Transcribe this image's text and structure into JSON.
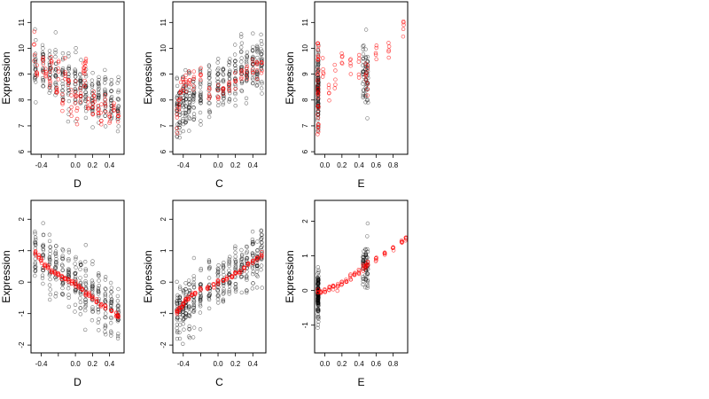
{
  "colors": {
    "observed": "#000000",
    "fitted": "#ff0000",
    "frame": "#000000",
    "background": "#ffffff"
  },
  "chart_data": [
    {
      "type": "scatter",
      "xlabel": "D",
      "ylabel": "Expression",
      "xlim": [
        -0.52,
        0.57
      ],
      "ylim": [
        5.9,
        11.8
      ],
      "xticks": [
        -0.4,
        -0.2,
        0.0,
        0.2,
        0.4
      ],
      "xticklabels": [
        "-0.4",
        "",
        "0.0",
        "0.2",
        "0.4"
      ],
      "yticks": [
        6,
        7,
        8,
        9,
        10,
        11
      ],
      "yticklabels": [
        "6",
        "7",
        "8",
        "9",
        "10",
        "11"
      ],
      "x_groups": [
        -0.47,
        -0.38,
        -0.3,
        -0.23,
        -0.15,
        -0.08,
        0.0,
        0.06,
        0.12,
        0.2,
        0.27,
        0.35,
        0.42,
        0.5
      ],
      "observed_trend": [
        [
          -0.45,
          9.3
        ],
        [
          0.0,
          8.6
        ],
        [
          0.5,
          7.8
        ]
      ],
      "observed_spread": 1.0,
      "fitted_points": [
        [
          -0.48,
          9.9
        ],
        [
          -0.45,
          9.1
        ],
        [
          -0.38,
          9.6
        ],
        [
          -0.35,
          9.0
        ],
        [
          -0.3,
          8.7
        ],
        [
          -0.28,
          9.5
        ],
        [
          -0.22,
          8.3
        ],
        [
          -0.2,
          9.3
        ],
        [
          -0.15,
          8.0
        ],
        [
          -0.12,
          8.9
        ],
        [
          -0.08,
          8.7
        ],
        [
          -0.05,
          7.8
        ],
        [
          0.0,
          8.4
        ],
        [
          0.02,
          7.6
        ],
        [
          0.06,
          8.0
        ],
        [
          0.1,
          9.1
        ],
        [
          0.11,
          8.9
        ],
        [
          0.12,
          9.4
        ],
        [
          0.15,
          7.9
        ],
        [
          0.2,
          7.5
        ],
        [
          0.22,
          8.3
        ],
        [
          0.27,
          7.7
        ],
        [
          0.3,
          7.4
        ],
        [
          0.35,
          8.0
        ],
        [
          0.4,
          7.2
        ],
        [
          0.45,
          7.6
        ],
        [
          0.5,
          7.2
        ]
      ],
      "fitted_spread": 0.5
    },
    {
      "type": "scatter",
      "xlabel": "C",
      "ylabel": "Expression",
      "xlim": [
        -0.52,
        0.55
      ],
      "ylim": [
        5.9,
        11.8
      ],
      "xticks": [
        -0.4,
        -0.2,
        0.0,
        0.2,
        0.4
      ],
      "xticklabels": [
        "-0.4",
        "",
        "0.0",
        "0.2",
        "0.4"
      ],
      "yticks": [
        6,
        7,
        8,
        9,
        10,
        11
      ],
      "yticklabels": [
        "6",
        "7",
        "8",
        "9",
        "10",
        "11"
      ],
      "x_groups": [
        -0.47,
        -0.44,
        -0.4,
        -0.37,
        -0.33,
        -0.28,
        -0.2,
        -0.1,
        0.0,
        0.06,
        0.13,
        0.2,
        0.27,
        0.33,
        0.4,
        0.45,
        0.5
      ],
      "observed_trend": [
        [
          -0.45,
          7.8
        ],
        [
          0.0,
          8.6
        ],
        [
          0.5,
          9.4
        ]
      ],
      "observed_spread": 1.0,
      "fitted_points": [
        [
          -0.47,
          7.3
        ],
        [
          -0.45,
          7.8
        ],
        [
          -0.43,
          8.2
        ],
        [
          -0.4,
          8.5
        ],
        [
          -0.37,
          8.7
        ],
        [
          -0.33,
          8.9
        ],
        [
          -0.28,
          8.9
        ],
        [
          -0.2,
          9.0
        ],
        [
          -0.1,
          8.3
        ],
        [
          0.0,
          8.2
        ],
        [
          0.06,
          8.5
        ],
        [
          0.13,
          8.6
        ],
        [
          0.2,
          8.8
        ],
        [
          0.27,
          9.0
        ],
        [
          0.33,
          9.1
        ],
        [
          0.4,
          9.1
        ],
        [
          0.45,
          9.3
        ],
        [
          0.5,
          9.3
        ]
      ],
      "fitted_spread": 0.45
    },
    {
      "type": "scatter",
      "xlabel": "E",
      "ylabel": "Expression",
      "xlim": [
        -0.12,
        0.97
      ],
      "ylim": [
        5.9,
        11.8
      ],
      "xticks": [
        0.0,
        0.2,
        0.4,
        0.6,
        0.8
      ],
      "xticklabels": [
        "0.0",
        "0.2",
        "0.4",
        "0.6",
        "0.8"
      ],
      "yticks": [
        6,
        7,
        8,
        9,
        10,
        11
      ],
      "yticklabels": [
        "6",
        "7",
        "8",
        "9",
        "10",
        "11"
      ],
      "x_groups": [
        -0.08,
        -0.08,
        -0.08,
        -0.08,
        -0.08,
        0.45,
        0.48,
        0.5
      ],
      "observed_trend": [
        [
          -0.08,
          8.3
        ],
        [
          0.5,
          8.9
        ]
      ],
      "observed_spread": 1.2,
      "fitted_points": [
        [
          -0.08,
          7.0
        ],
        [
          -0.08,
          7.5
        ],
        [
          -0.08,
          8.0
        ],
        [
          -0.08,
          8.5
        ],
        [
          -0.08,
          9.0
        ],
        [
          -0.08,
          9.5
        ],
        [
          -0.08,
          10.0
        ],
        [
          -0.02,
          9.2
        ],
        [
          0.05,
          8.3
        ],
        [
          0.12,
          9.0
        ],
        [
          0.2,
          9.4
        ],
        [
          0.3,
          9.2
        ],
        [
          0.4,
          9.6
        ],
        [
          0.48,
          8.8
        ],
        [
          0.5,
          8.6
        ],
        [
          0.6,
          9.8
        ],
        [
          0.75,
          9.9
        ],
        [
          0.92,
          10.6
        ]
      ],
      "fitted_spread": 0.6
    },
    {
      "type": "scatter",
      "xlabel": "D",
      "ylabel": "Expression",
      "xlim": [
        -0.52,
        0.57
      ],
      "ylim": [
        -2.25,
        2.6
      ],
      "xticks": [
        -0.4,
        -0.2,
        0.0,
        0.2,
        0.4
      ],
      "xticklabels": [
        "-0.4",
        "",
        "0.0",
        "0.2",
        "0.4"
      ],
      "yticks": [
        -2,
        -1,
        0,
        1,
        2
      ],
      "yticklabels": [
        "-2",
        "-1",
        "0",
        "1",
        "2"
      ],
      "x_groups": [
        -0.47,
        -0.38,
        -0.3,
        -0.23,
        -0.15,
        -0.08,
        0.0,
        0.06,
        0.12,
        0.2,
        0.27,
        0.35,
        0.42,
        0.5
      ],
      "observed_trend": [
        [
          -0.45,
          0.9
        ],
        [
          0.0,
          0.0
        ],
        [
          0.5,
          -1.0
        ]
      ],
      "observed_spread": 0.8,
      "fitted_points": [
        [
          -0.47,
          0.95
        ],
        [
          -0.43,
          0.8
        ],
        [
          -0.4,
          0.7
        ],
        [
          -0.36,
          0.55
        ],
        [
          -0.32,
          0.45
        ],
        [
          -0.28,
          0.35
        ],
        [
          -0.24,
          0.3
        ],
        [
          -0.2,
          0.25
        ],
        [
          -0.16,
          0.15
        ],
        [
          -0.12,
          0.1
        ],
        [
          -0.08,
          0.05
        ],
        [
          -0.04,
          0.0
        ],
        [
          0.0,
          -0.05
        ],
        [
          0.04,
          -0.15
        ],
        [
          0.08,
          -0.25
        ],
        [
          0.12,
          -0.35
        ],
        [
          0.16,
          -0.4
        ],
        [
          0.2,
          -0.5
        ],
        [
          0.25,
          -0.6
        ],
        [
          0.3,
          -0.7
        ],
        [
          0.35,
          -0.8
        ],
        [
          0.42,
          -0.9
        ],
        [
          0.48,
          -1.05
        ],
        [
          0.5,
          -1.1
        ]
      ],
      "fitted_spread": 0.08
    },
    {
      "type": "scatter",
      "xlabel": "C",
      "ylabel": "Expression",
      "xlim": [
        -0.52,
        0.55
      ],
      "ylim": [
        -2.25,
        2.6
      ],
      "xticks": [
        -0.4,
        -0.2,
        0.0,
        0.2,
        0.4
      ],
      "xticklabels": [
        "-0.4",
        "",
        "0.0",
        "0.2",
        "0.4"
      ],
      "yticks": [
        -2,
        -1,
        0,
        1,
        2
      ],
      "yticklabels": [
        "-2",
        "-1",
        "0",
        "1",
        "2"
      ],
      "x_groups": [
        -0.47,
        -0.44,
        -0.4,
        -0.37,
        -0.33,
        -0.28,
        -0.2,
        -0.1,
        0.0,
        0.06,
        0.13,
        0.2,
        0.27,
        0.33,
        0.4,
        0.45,
        0.5
      ],
      "observed_trend": [
        [
          -0.45,
          -0.9
        ],
        [
          0.0,
          0.0
        ],
        [
          0.5,
          0.9
        ]
      ],
      "observed_spread": 0.8,
      "fitted_points": [
        [
          -0.47,
          -0.95
        ],
        [
          -0.45,
          -0.85
        ],
        [
          -0.42,
          -0.75
        ],
        [
          -0.4,
          -0.65
        ],
        [
          -0.37,
          -0.55
        ],
        [
          -0.34,
          -0.5
        ],
        [
          -0.3,
          -0.4
        ],
        [
          -0.26,
          -0.35
        ],
        [
          -0.2,
          -0.25
        ],
        [
          -0.12,
          -0.2
        ],
        [
          -0.05,
          -0.1
        ],
        [
          0.0,
          0.0
        ],
        [
          0.06,
          0.05
        ],
        [
          0.1,
          0.1
        ],
        [
          0.16,
          0.2
        ],
        [
          0.2,
          0.3
        ],
        [
          0.25,
          0.35
        ],
        [
          0.3,
          0.45
        ],
        [
          0.35,
          0.55
        ],
        [
          0.4,
          0.65
        ],
        [
          0.45,
          0.75
        ],
        [
          0.5,
          0.85
        ]
      ],
      "fitted_spread": 0.08
    },
    {
      "type": "scatter",
      "xlabel": "E",
      "ylabel": "Expression",
      "xlim": [
        -0.12,
        0.97
      ],
      "ylim": [
        -1.8,
        2.6
      ],
      "xticks": [
        0.0,
        0.2,
        0.4,
        0.6,
        0.8
      ],
      "xticklabels": [
        "0.0",
        "0.2",
        "0.4",
        "0.6",
        "0.8"
      ],
      "yticks": [
        -1,
        0,
        1,
        2
      ],
      "yticklabels": [
        "-1",
        "0",
        "1",
        "2"
      ],
      "x_groups": [
        -0.08,
        -0.08,
        -0.08,
        -0.08,
        -0.08,
        -0.08,
        0.45,
        0.48,
        0.5
      ],
      "observed_trend": [
        [
          -0.08,
          -0.1
        ],
        [
          0.5,
          0.75
        ]
      ],
      "observed_spread": 0.6,
      "fitted_points": [
        [
          -0.08,
          -0.05
        ],
        [
          -0.05,
          -0.02
        ],
        [
          0.0,
          0.0
        ],
        [
          0.05,
          0.05
        ],
        [
          0.1,
          0.1
        ],
        [
          0.15,
          0.15
        ],
        [
          0.2,
          0.2
        ],
        [
          0.25,
          0.28
        ],
        [
          0.3,
          0.35
        ],
        [
          0.35,
          0.45
        ],
        [
          0.4,
          0.55
        ],
        [
          0.45,
          0.65
        ],
        [
          0.48,
          0.72
        ],
        [
          0.5,
          0.78
        ],
        [
          0.6,
          0.9
        ],
        [
          0.7,
          1.05
        ],
        [
          0.8,
          1.2
        ],
        [
          0.9,
          1.4
        ],
        [
          0.95,
          1.5
        ]
      ],
      "fitted_spread": 0.1
    }
  ]
}
